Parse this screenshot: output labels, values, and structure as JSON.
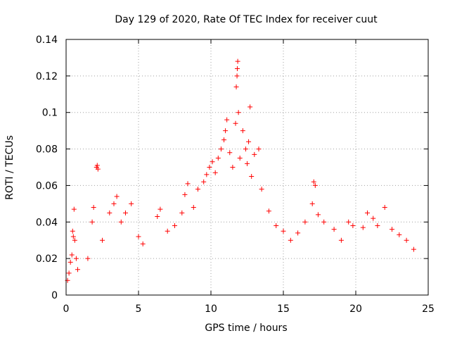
{
  "chart_data": {
    "type": "scatter",
    "title": "Day 129 of 2020, Rate Of TEC Index for receiver cuut",
    "xlabel": "GPS time / hours",
    "ylabel": "ROTI / TECUs",
    "xlim": [
      0,
      25
    ],
    "ylim": [
      0,
      0.14
    ],
    "grid": true,
    "marker": "+",
    "color": "#ff0000",
    "x_ticks": [
      "0",
      "5",
      "10",
      "15",
      "20",
      "25"
    ],
    "y_ticks": [
      "0",
      "0.02",
      "0.04",
      "0.06",
      "0.08",
      "0.1",
      "0.12",
      "0.14"
    ],
    "series": [
      {
        "points": [
          [
            0.1,
            0.008
          ],
          [
            0.2,
            0.012
          ],
          [
            0.3,
            0.018
          ],
          [
            0.4,
            0.022
          ],
          [
            0.45,
            0.035
          ],
          [
            0.5,
            0.032
          ],
          [
            0.55,
            0.047
          ],
          [
            0.6,
            0.03
          ],
          [
            0.7,
            0.02
          ],
          [
            0.8,
            0.014
          ],
          [
            1.5,
            0.02
          ],
          [
            1.8,
            0.04
          ],
          [
            1.9,
            0.048
          ],
          [
            2.1,
            0.07
          ],
          [
            2.15,
            0.071
          ],
          [
            2.2,
            0.069
          ],
          [
            2.5,
            0.03
          ],
          [
            3.0,
            0.045
          ],
          [
            3.3,
            0.05
          ],
          [
            3.5,
            0.054
          ],
          [
            3.8,
            0.04
          ],
          [
            4.1,
            0.045
          ],
          [
            4.5,
            0.05
          ],
          [
            5.0,
            0.032
          ],
          [
            5.3,
            0.028
          ],
          [
            6.3,
            0.043
          ],
          [
            6.5,
            0.047
          ],
          [
            7.0,
            0.035
          ],
          [
            7.5,
            0.038
          ],
          [
            8.0,
            0.045
          ],
          [
            8.2,
            0.055
          ],
          [
            8.4,
            0.061
          ],
          [
            8.8,
            0.048
          ],
          [
            9.1,
            0.058
          ],
          [
            9.5,
            0.062
          ],
          [
            9.7,
            0.066
          ],
          [
            9.9,
            0.07
          ],
          [
            10.1,
            0.073
          ],
          [
            10.3,
            0.067
          ],
          [
            10.5,
            0.075
          ],
          [
            10.7,
            0.08
          ],
          [
            10.9,
            0.085
          ],
          [
            11.0,
            0.09
          ],
          [
            11.1,
            0.096
          ],
          [
            11.3,
            0.078
          ],
          [
            11.5,
            0.07
          ],
          [
            11.7,
            0.094
          ],
          [
            11.75,
            0.114
          ],
          [
            11.8,
            0.12
          ],
          [
            11.82,
            0.124
          ],
          [
            11.85,
            0.128
          ],
          [
            11.9,
            0.1
          ],
          [
            12.0,
            0.075
          ],
          [
            12.2,
            0.09
          ],
          [
            12.4,
            0.08
          ],
          [
            12.5,
            0.072
          ],
          [
            12.6,
            0.084
          ],
          [
            12.7,
            0.103
          ],
          [
            12.8,
            0.065
          ],
          [
            13.0,
            0.077
          ],
          [
            13.3,
            0.08
          ],
          [
            13.5,
            0.058
          ],
          [
            14.0,
            0.046
          ],
          [
            14.5,
            0.038
          ],
          [
            15.0,
            0.035
          ],
          [
            15.5,
            0.03
          ],
          [
            16.0,
            0.034
          ],
          [
            16.5,
            0.04
          ],
          [
            17.0,
            0.05
          ],
          [
            17.1,
            0.062
          ],
          [
            17.2,
            0.06
          ],
          [
            17.4,
            0.044
          ],
          [
            17.8,
            0.04
          ],
          [
            18.5,
            0.036
          ],
          [
            19.0,
            0.03
          ],
          [
            19.5,
            0.04
          ],
          [
            19.8,
            0.038
          ],
          [
            20.5,
            0.037
          ],
          [
            20.8,
            0.045
          ],
          [
            21.2,
            0.042
          ],
          [
            21.5,
            0.038
          ],
          [
            22.0,
            0.048
          ],
          [
            22.5,
            0.036
          ],
          [
            23.0,
            0.033
          ],
          [
            23.5,
            0.03
          ],
          [
            24.0,
            0.025
          ]
        ]
      }
    ]
  }
}
